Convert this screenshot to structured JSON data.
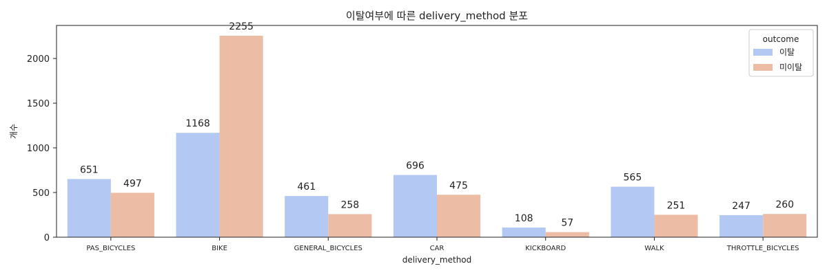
{
  "chart_data": {
    "type": "bar",
    "title": "이탈여부에 따른 delivery_method 분포",
    "xlabel": "delivery_method",
    "ylabel": "개수",
    "ylim": [
      0,
      2370
    ],
    "yticks": [
      0,
      500,
      1000,
      1500,
      2000
    ],
    "grid": false,
    "legend": {
      "title": "outcome",
      "placement": "top-right"
    },
    "categories": [
      "PAS_BICYCLES",
      "BIKE",
      "GENERAL_BICYCLES",
      "CAR",
      "KICKBOARD",
      "WALK",
      "THROTTLE_BICYCLES"
    ],
    "series": [
      {
        "name": "이탈",
        "color": "#b3c9f4",
        "values": [
          651,
          1168,
          461,
          696,
          108,
          565,
          247
        ]
      },
      {
        "name": "미이탈",
        "color": "#edbca5",
        "values": [
          497,
          2255,
          258,
          475,
          57,
          251,
          260
        ]
      }
    ]
  }
}
